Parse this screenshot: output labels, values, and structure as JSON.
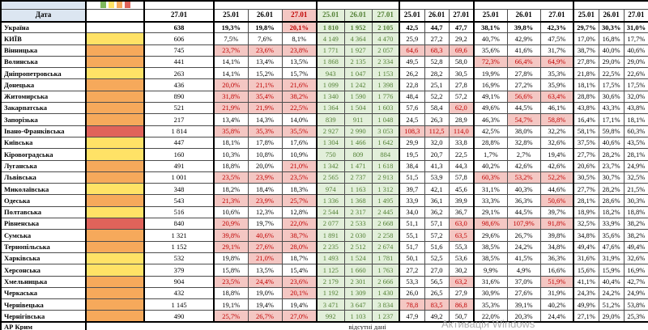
{
  "colors": {
    "header_blue": "#dce6f1",
    "green_bg": "#e2efda",
    "green_text": "#538135",
    "pink_bg": "#f4c7c3",
    "red_text": "#c00000",
    "swatch_yellow": "#ffe266",
    "swatch_orange": "#f6a95b",
    "swatch_red": "#e0635a",
    "swatch_green": "#7fb95c"
  },
  "table": {
    "corner_label": "Дата",
    "legend_colors": [
      "#7fb95c",
      "#ffe266",
      "#f6a95b",
      "#e0635a"
    ],
    "col1_date": "27.01",
    "dates": [
      "25.01",
      "26.01",
      "27.01"
    ],
    "totals": {
      "name": "Україна",
      "c1": "638",
      "g2": [
        "19,3%",
        "19,8%",
        "20,1%"
      ],
      "g2_red": [
        0,
        0,
        1
      ],
      "g3": [
        "1 810",
        "1 952",
        "2 105"
      ],
      "g4": [
        "42,5",
        "44,7",
        "47,7"
      ],
      "g5": [
        "38,1%",
        "39,8%",
        "42,3%"
      ],
      "g6": [
        "29,7%",
        "30,3%",
        "31,0%"
      ]
    },
    "rows": [
      {
        "name": "КИЇВ",
        "color": "y",
        "c1": "606",
        "g2": [
          "7,5%",
          "7,6%",
          "8,1%"
        ],
        "g3": [
          "4 149",
          "4 364",
          "4 470"
        ],
        "g4": [
          "25,9",
          "27,2",
          "29,2"
        ],
        "g5": [
          "40,7%",
          "42,9%",
          "47,5%"
        ],
        "g6": [
          "17,0%",
          "16,8%",
          "17,7%"
        ]
      },
      {
        "name": "Вінницька",
        "color": "o",
        "c1": "745",
        "g2": [
          "23,7%",
          "23,6%",
          "23,8%"
        ],
        "g2_red": [
          1,
          1,
          1
        ],
        "g3": [
          "1 771",
          "1 927",
          "2 057"
        ],
        "g4": [
          "64,6",
          "68,3",
          "69,6"
        ],
        "g4_red": [
          1,
          1,
          1
        ],
        "g5": [
          "35,6%",
          "41,6%",
          "31,7%"
        ],
        "g6": [
          "38,7%",
          "40,0%",
          "40,6%"
        ]
      },
      {
        "name": "Волинська",
        "color": "o",
        "c1": "441",
        "g2": [
          "14,1%",
          "13,4%",
          "13,5%"
        ],
        "g3": [
          "1 868",
          "2 135",
          "2 334"
        ],
        "g4": [
          "49,5",
          "52,8",
          "58,0"
        ],
        "g5": [
          "72,3%",
          "66,4%",
          "64,9%"
        ],
        "g5_red": [
          1,
          1,
          1
        ],
        "g6": [
          "27,8%",
          "29,0%",
          "29,0%"
        ]
      },
      {
        "name": "Дніпропетровська",
        "color": "y",
        "c1": "263",
        "g2": [
          "14,1%",
          "15,2%",
          "15,7%"
        ],
        "g3": [
          "943",
          "1 047",
          "1 153"
        ],
        "g4": [
          "26,2",
          "28,2",
          "30,5"
        ],
        "g5": [
          "19,9%",
          "27,8%",
          "35,3%"
        ],
        "g6": [
          "21,8%",
          "22,5%",
          "22,6%"
        ]
      },
      {
        "name": "Донецька",
        "color": "o",
        "c1": "436",
        "g2": [
          "20,0%",
          "21,1%",
          "21,6%"
        ],
        "g2_red": [
          1,
          1,
          1
        ],
        "g3": [
          "1 099",
          "1 242",
          "1 398"
        ],
        "g4": [
          "22,8",
          "25,1",
          "27,8"
        ],
        "g5": [
          "16,9%",
          "27,2%",
          "35,9%"
        ],
        "g6": [
          "18,1%",
          "17,5%",
          "17,5%"
        ]
      },
      {
        "name": "Житомирська",
        "color": "o",
        "c1": "890",
        "g2": [
          "31,8%",
          "35,4%",
          "38,2%"
        ],
        "g2_red": [
          1,
          1,
          1
        ],
        "g3": [
          "1 340",
          "1 590",
          "1 776"
        ],
        "g4": [
          "48,4",
          "52,2",
          "57,2"
        ],
        "g5": [
          "49,1%",
          "56,6%",
          "63,4%"
        ],
        "g5_red": [
          0,
          1,
          1
        ],
        "g6": [
          "28,8%",
          "30,6%",
          "32,0%"
        ]
      },
      {
        "name": "Закарпатська",
        "color": "o",
        "c1": "521",
        "g2": [
          "21,9%",
          "21,9%",
          "22,5%"
        ],
        "g2_red": [
          1,
          1,
          1
        ],
        "g3": [
          "1 364",
          "1 504",
          "1 603"
        ],
        "g4": [
          "57,6",
          "58,4",
          "62,0"
        ],
        "g4_red": [
          0,
          0,
          1
        ],
        "g5": [
          "49,6%",
          "44,5%",
          "46,1%"
        ],
        "g6": [
          "43,8%",
          "43,3%",
          "43,8%"
        ]
      },
      {
        "name": "Запорізька",
        "color": "o",
        "c1": "217",
        "g2": [
          "13,4%",
          "14,3%",
          "14,0%"
        ],
        "g3": [
          "839",
          "911",
          "1 048"
        ],
        "g4": [
          "24,5",
          "26,3",
          "28,9"
        ],
        "g5": [
          "46,3%",
          "54,7%",
          "58,8%"
        ],
        "g5_red": [
          0,
          1,
          1
        ],
        "g6": [
          "16,4%",
          "17,1%",
          "18,1%"
        ]
      },
      {
        "name": "Івано-Франківська",
        "color": "r",
        "c1": "1 814",
        "g2": [
          "35,8%",
          "35,3%",
          "35,5%"
        ],
        "g2_red": [
          1,
          1,
          1
        ],
        "g3": [
          "2 927",
          "2 990",
          "3 053"
        ],
        "g4": [
          "108,3",
          "112,5",
          "114,0"
        ],
        "g4_red": [
          1,
          1,
          1
        ],
        "g5": [
          "42,5%",
          "38,0%",
          "32,2%"
        ],
        "g6": [
          "58,1%",
          "59,8%",
          "60,3%"
        ]
      },
      {
        "name": "Київська",
        "color": "y",
        "c1": "447",
        "g2": [
          "18,1%",
          "17,8%",
          "17,6%"
        ],
        "g3": [
          "1 304",
          "1 466",
          "1 642"
        ],
        "g4": [
          "29,9",
          "32,0",
          "33,8"
        ],
        "g5": [
          "28,8%",
          "32,8%",
          "32,6%"
        ],
        "g6": [
          "37,5%",
          "40,6%",
          "43,5%"
        ]
      },
      {
        "name": "Кіровоградська",
        "color": "y",
        "c1": "160",
        "g2": [
          "10,3%",
          "10,8%",
          "10,9%"
        ],
        "g3": [
          "750",
          "809",
          "884"
        ],
        "g4": [
          "19,5",
          "20,7",
          "22,5"
        ],
        "g5": [
          "1,7%",
          "2,7%",
          "19,4%"
        ],
        "g6": [
          "27,7%",
          "28,2%",
          "28,1%"
        ]
      },
      {
        "name": "Луганська",
        "color": "o",
        "c1": "491",
        "g2": [
          "18,8%",
          "20,0%",
          "21,0%"
        ],
        "g2_red": [
          0,
          0,
          1
        ],
        "g3": [
          "1 342",
          "1 471",
          "1 618"
        ],
        "g4": [
          "38,4",
          "41,3",
          "44,3"
        ],
        "g5": [
          "40,2%",
          "42,6%",
          "42,6%"
        ],
        "g6": [
          "20,6%",
          "23,7%",
          "24,9%"
        ]
      },
      {
        "name": "Львівська",
        "color": "o",
        "c1": "1 001",
        "g2": [
          "23,5%",
          "23,9%",
          "23,5%"
        ],
        "g2_red": [
          1,
          1,
          1
        ],
        "g3": [
          "2 565",
          "2 737",
          "2 913"
        ],
        "g4": [
          "51,5",
          "53,9",
          "57,8"
        ],
        "g5": [
          "60,3%",
          "53,2%",
          "52,2%"
        ],
        "g5_red": [
          1,
          1,
          1
        ],
        "g6": [
          "30,5%",
          "30,7%",
          "32,5%"
        ]
      },
      {
        "name": "Миколаївська",
        "color": "y",
        "c1": "348",
        "g2": [
          "18,2%",
          "18,4%",
          "18,3%"
        ],
        "g3": [
          "974",
          "1 163",
          "1 312"
        ],
        "g4": [
          "39,7",
          "42,1",
          "45,6"
        ],
        "g5": [
          "31,1%",
          "40,3%",
          "44,6%"
        ],
        "g6": [
          "27,7%",
          "28,2%",
          "21,5%"
        ]
      },
      {
        "name": "Одеська",
        "color": "o",
        "c1": "543",
        "g2": [
          "21,3%",
          "23,9%",
          "25,7%"
        ],
        "g2_red": [
          1,
          1,
          1
        ],
        "g3": [
          "1 336",
          "1 368",
          "1 495"
        ],
        "g4": [
          "33,9",
          "36,1",
          "39,9"
        ],
        "g5": [
          "33,3%",
          "36,3%",
          "50,6%"
        ],
        "g5_red": [
          0,
          0,
          1
        ],
        "g6": [
          "28,1%",
          "28,6%",
          "30,3%"
        ]
      },
      {
        "name": "Полтавська",
        "color": "y",
        "c1": "516",
        "g2": [
          "10,6%",
          "12,3%",
          "12,8%"
        ],
        "g3": [
          "2 544",
          "2 317",
          "2 445"
        ],
        "g4": [
          "34,0",
          "36,2",
          "36,7"
        ],
        "g5": [
          "29,1%",
          "44,5%",
          "39,7%"
        ],
        "g6": [
          "18,9%",
          "18,2%",
          "18,8%"
        ]
      },
      {
        "name": "Рівненська",
        "color": "r",
        "c1": "840",
        "g2": [
          "20,9%",
          "19,7%",
          "22,0%"
        ],
        "g2_red": [
          1,
          0,
          1
        ],
        "g3": [
          "2 077",
          "2 533",
          "2 668"
        ],
        "g4": [
          "51,1",
          "57,1",
          "63,0"
        ],
        "g4_red": [
          0,
          0,
          1
        ],
        "g5": [
          "98,6%",
          "107,9%",
          "91,8%"
        ],
        "g5_red": [
          1,
          1,
          1
        ],
        "g6": [
          "32,5%",
          "33,9%",
          "38,2%"
        ]
      },
      {
        "name": "Сумська",
        "color": "o",
        "c1": "1 321",
        "g2": [
          "39,8%",
          "40,6%",
          "38,7%"
        ],
        "g2_red": [
          1,
          1,
          1
        ],
        "g3": [
          "1 891",
          "2 030",
          "2 258"
        ],
        "g4": [
          "55,1",
          "57,2",
          "63,5"
        ],
        "g4_red": [
          0,
          0,
          1
        ],
        "g5": [
          "29,6%",
          "26,7%",
          "39,8%"
        ],
        "g6": [
          "34,8%",
          "35,6%",
          "38,2%"
        ]
      },
      {
        "name": "Тернопільська",
        "color": "o",
        "c1": "1 152",
        "g2": [
          "29,1%",
          "27,6%",
          "28,0%"
        ],
        "g2_red": [
          1,
          1,
          1
        ],
        "g3": [
          "2 235",
          "2 512",
          "2 674"
        ],
        "g4": [
          "51,7",
          "51,6",
          "55,3"
        ],
        "g5": [
          "38,5%",
          "24,2%",
          "34,8%"
        ],
        "g6": [
          "49,4%",
          "47,6%",
          "49,4%"
        ]
      },
      {
        "name": "Харківська",
        "color": "y",
        "c1": "532",
        "g2": [
          "19,8%",
          "21,0%",
          "18,7%"
        ],
        "g2_red": [
          0,
          1,
          0
        ],
        "g3": [
          "1 493",
          "1 524",
          "1 781"
        ],
        "g4": [
          "50,1",
          "52,5",
          "53,6"
        ],
        "g5": [
          "38,5%",
          "41,5%",
          "36,3%"
        ],
        "g6": [
          "31,6%",
          "31,9%",
          "32,6%"
        ]
      },
      {
        "name": "Херсонська",
        "color": "y",
        "c1": "379",
        "g2": [
          "15,8%",
          "13,5%",
          "15,4%"
        ],
        "g3": [
          "1 125",
          "1 660",
          "1 763"
        ],
        "g4": [
          "27,2",
          "27,0",
          "30,2"
        ],
        "g5": [
          "9,9%",
          "4,9%",
          "16,6%"
        ],
        "g6": [
          "15,6%",
          "15,9%",
          "16,9%"
        ]
      },
      {
        "name": "Хмельницька",
        "color": "o",
        "c1": "904",
        "g2": [
          "23,5%",
          "24,4%",
          "23,6%"
        ],
        "g2_red": [
          1,
          1,
          1
        ],
        "g3": [
          "2 179",
          "2 301",
          "2 666"
        ],
        "g4": [
          "53,3",
          "56,5",
          "63,2"
        ],
        "g4_red": [
          0,
          0,
          1
        ],
        "g5": [
          "31,6%",
          "37,0%",
          "51,9%"
        ],
        "g5_red": [
          0,
          0,
          1
        ],
        "g6": [
          "41,1%",
          "40,4%",
          "42,7%"
        ]
      },
      {
        "name": "Черкаська",
        "color": "o",
        "c1": "432",
        "g2": [
          "18,8%",
          "19,0%",
          "20,1%"
        ],
        "g2_red": [
          0,
          0,
          1
        ],
        "g3": [
          "1 192",
          "1 309",
          "1 430"
        ],
        "g4": [
          "26,0",
          "26,5",
          "27,9"
        ],
        "g5": [
          "30,9%",
          "27,6%",
          "31,9%"
        ],
        "g6": [
          "24,3%",
          "24,2%",
          "24,9%"
        ]
      },
      {
        "name": "Чернівецька",
        "color": "o",
        "c1": "1 145",
        "g2": [
          "19,1%",
          "19,4%",
          "19,4%"
        ],
        "g3": [
          "3 471",
          "3 647",
          "3 834"
        ],
        "g4": [
          "78,8",
          "83,5",
          "86,8"
        ],
        "g4_red": [
          1,
          1,
          1
        ],
        "g5": [
          "35,3%",
          "39,1%",
          "40,2%"
        ],
        "g6": [
          "49,9%",
          "51,2%",
          "53,8%"
        ]
      },
      {
        "name": "Чернігівська",
        "color": "o",
        "c1": "490",
        "g2": [
          "25,7%",
          "26,7%",
          "27,0%"
        ],
        "g2_red": [
          1,
          1,
          1
        ],
        "g3": [
          "992",
          "1 103",
          "1 237"
        ],
        "g4": [
          "47,9",
          "49,2",
          "50,7"
        ],
        "g5": [
          "22,0%",
          "20,3%",
          "24,4%"
        ],
        "g6": [
          "27,1%",
          "29,0%",
          "25,3%"
        ]
      }
    ],
    "footer": {
      "name": "АР Крим",
      "note": "відсутні дані"
    }
  },
  "watermark": "Активація Windows"
}
